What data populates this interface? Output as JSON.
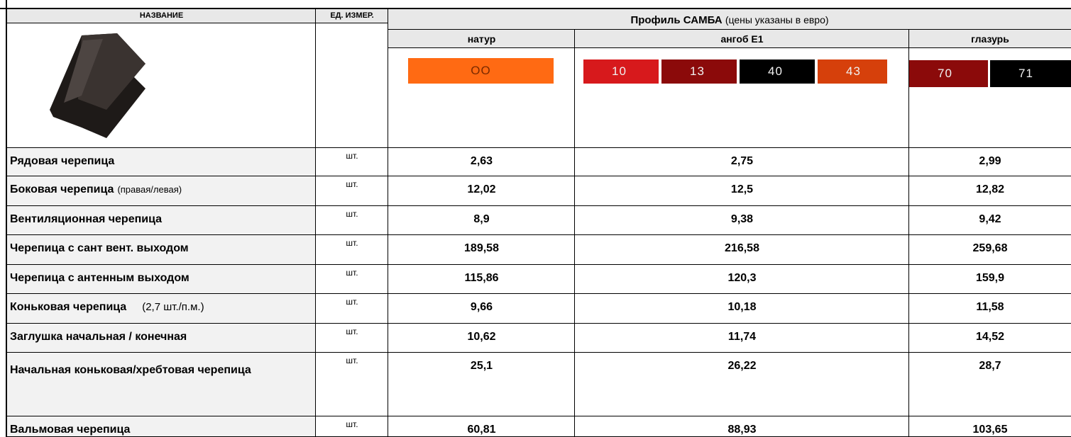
{
  "header": {
    "name": "НАЗВАНИЕ",
    "unit": "ЕД. ИЗМЕР.",
    "profile": "Профиль САМБА",
    "profile_note": "(цены указаны в евро)"
  },
  "groups": [
    {
      "title": "натур",
      "swatches": [
        {
          "label": "ОО",
          "color": "#ff6a13"
        }
      ]
    },
    {
      "title": "ангоб Е1",
      "swatches": [
        {
          "label": "10",
          "color": "#d7191c"
        },
        {
          "label": "13",
          "color": "#8b0a0a"
        },
        {
          "label": "40",
          "color": "#000000"
        },
        {
          "label": "43",
          "color": "#d6400b"
        }
      ]
    },
    {
      "title": "глазурь",
      "swatches": [
        {
          "label": "70",
          "color": "#8b0a0a"
        },
        {
          "label": "71",
          "color": "#000000"
        }
      ]
    }
  ],
  "rows": [
    {
      "name": "Рядовая черепица",
      "unit": "шт.",
      "prices": [
        "2,63",
        "2,75",
        "2,99"
      ]
    },
    {
      "name": "Боковая черепица",
      "note": "(правая/левая)",
      "unit": "шт.",
      "prices": [
        "12,02",
        "12,5",
        "12,82"
      ]
    },
    {
      "name": "Вентиляционная черепица",
      "unit": "шт.",
      "prices": [
        "8,9",
        "9,38",
        "9,42"
      ]
    },
    {
      "name": "Черепица с сант вент. выходом",
      "unit": "шт.",
      "prices": [
        "189,58",
        "216,58",
        "259,68"
      ]
    },
    {
      "name": "Черепица с антенным выходом",
      "unit": "шт.",
      "prices": [
        "115,86",
        "120,3",
        "159,9"
      ]
    },
    {
      "name": "Коньковая черепица",
      "note": "(2,7 шт./п.м.)",
      "unit": "шт.",
      "prices": [
        "9,66",
        "10,18",
        "11,58"
      ]
    },
    {
      "name": "Заглушка начальная / конечная",
      "unit": "шт.",
      "prices": [
        "10,62",
        "11,74",
        "14,52"
      ]
    },
    {
      "name": "Начальная коньковая/хребтовая черепица",
      "unit": "шт.",
      "prices": [
        "25,1",
        "26,22",
        "28,7"
      ]
    },
    {
      "name": "Вальмовая черепица",
      "unit": "шт.",
      "prices": [
        "60,81",
        "88,93",
        "103,65"
      ]
    }
  ]
}
